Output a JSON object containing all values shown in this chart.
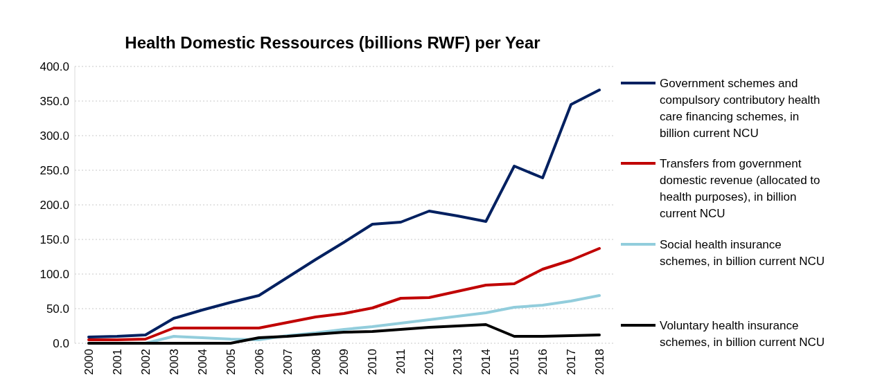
{
  "chart_data": {
    "type": "line",
    "title": "Health Domestic Ressources (billions RWF) per Year",
    "categories": [
      "2000",
      "2001",
      "2002",
      "2003",
      "2004",
      "2005",
      "2006",
      "2007",
      "2008",
      "2009",
      "2010",
      "2011",
      "2012",
      "2013",
      "2014",
      "2015",
      "2016",
      "2017",
      "2018"
    ],
    "series": [
      {
        "name": "Government schemes and compulsory contributory health care financing schemes, in billion current NCU",
        "color": "#002060",
        "values": [
          9,
          10,
          12,
          36,
          48,
          59,
          69,
          95,
          121,
          146,
          172,
          175,
          191,
          184,
          176,
          256,
          239,
          345,
          366
        ]
      },
      {
        "name": "Transfers from government domestic revenue (allocated to health purposes), in billion current NCU",
        "color": "#c00000",
        "values": [
          5,
          5,
          6,
          22,
          22,
          22,
          22,
          30,
          38,
          43,
          51,
          65,
          66,
          75,
          84,
          86,
          107,
          120,
          137
        ]
      },
      {
        "name": "Social health insurance schemes, in billion current NCU",
        "color": "#92cddc",
        "values": [
          0,
          0,
          0,
          10,
          8,
          6,
          5,
          11,
          15,
          20,
          24,
          29,
          34,
          39,
          44,
          52,
          55,
          61,
          69
        ]
      },
      {
        "name": "Voluntary health insurance schemes, in billion current NCU",
        "color": "#000000",
        "values": [
          0,
          0,
          0,
          0,
          0,
          0,
          8,
          10,
          13,
          16,
          17,
          20,
          23,
          25,
          27,
          10,
          10,
          11,
          12
        ]
      }
    ],
    "ylim": [
      0,
      400
    ],
    "yticks": [
      {
        "value": 0,
        "label": "0.0"
      },
      {
        "value": 50,
        "label": "50.0"
      },
      {
        "value": 100,
        "label": "100.0"
      },
      {
        "value": 150,
        "label": "150.0"
      },
      {
        "value": 200,
        "label": "200.0"
      },
      {
        "value": 250,
        "label": "250.0"
      },
      {
        "value": 300,
        "label": "300.0"
      },
      {
        "value": 350,
        "label": "350.0"
      },
      {
        "value": 400,
        "label": "400.0"
      }
    ],
    "grid": "y",
    "legend": "right",
    "marker": "none",
    "line_style": "solid"
  }
}
